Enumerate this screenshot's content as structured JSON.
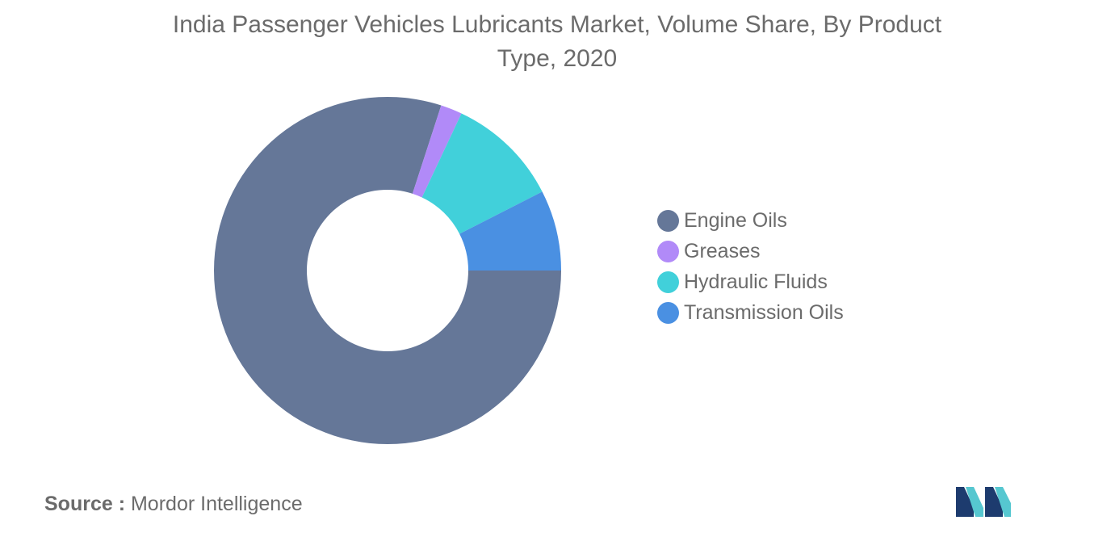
{
  "chart_data": {
    "type": "pie",
    "title_lines": [
      "India Passenger Vehicles Lubricants Market, Volume Share, By Product",
      "Type, 2020"
    ],
    "categories": [
      "Engine Oils",
      "Greases",
      "Hydraulic Fluids",
      "Transmission Oils"
    ],
    "values": [
      80.0,
      2.0,
      10.5,
      7.5
    ],
    "unit": "%",
    "colors": [
      "#657798",
      "#b18af8",
      "#41d0da",
      "#4a90e2"
    ],
    "donut": true,
    "legend_position": "right"
  },
  "source": {
    "prefix": "Source :",
    "text": "Mordor Intelligence"
  },
  "logo": {
    "icon": "mordor-intelligence-logo-icon",
    "colors": [
      "#1d3b6e",
      "#56c7d0"
    ]
  }
}
